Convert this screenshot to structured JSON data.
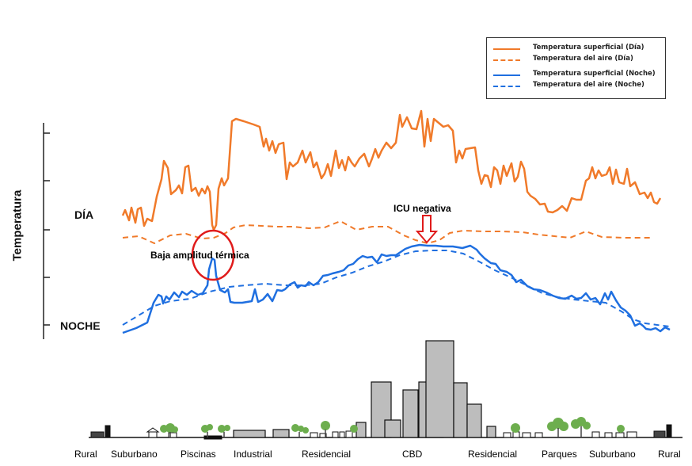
{
  "legend": {
    "items": [
      {
        "label": "Temperatura superficial (Día)",
        "color": "#F07A2A",
        "style": "solid"
      },
      {
        "label": "Temperatura del aire (Día)",
        "color": "#F07A2A",
        "style": "dashed"
      },
      {
        "label": "Temperatura superficial (Noche)",
        "color": "#1F6FE0",
        "style": "solid"
      },
      {
        "label": "Temperatura del aire (Noche)",
        "color": "#1F6FE0",
        "style": "dashed"
      }
    ]
  },
  "axis": {
    "ylabel": "Temperatura"
  },
  "labels": {
    "day": "DÍA",
    "night": "NOCHE"
  },
  "annotations": {
    "low_amplitude": "Baja amplitud térmica",
    "negative_uhi": "ICU negativa"
  },
  "zones": [
    "Rural",
    "Suburbano",
    "Piscinas",
    "Industrial",
    "Residencial",
    "CBD",
    "Residencial",
    "Parques",
    "Suburbano",
    "Rural"
  ],
  "colors": {
    "day": "#F07A2A",
    "night": "#1F6FE0",
    "highlight": "#E01B1B",
    "building": "#BDBDBD"
  }
}
